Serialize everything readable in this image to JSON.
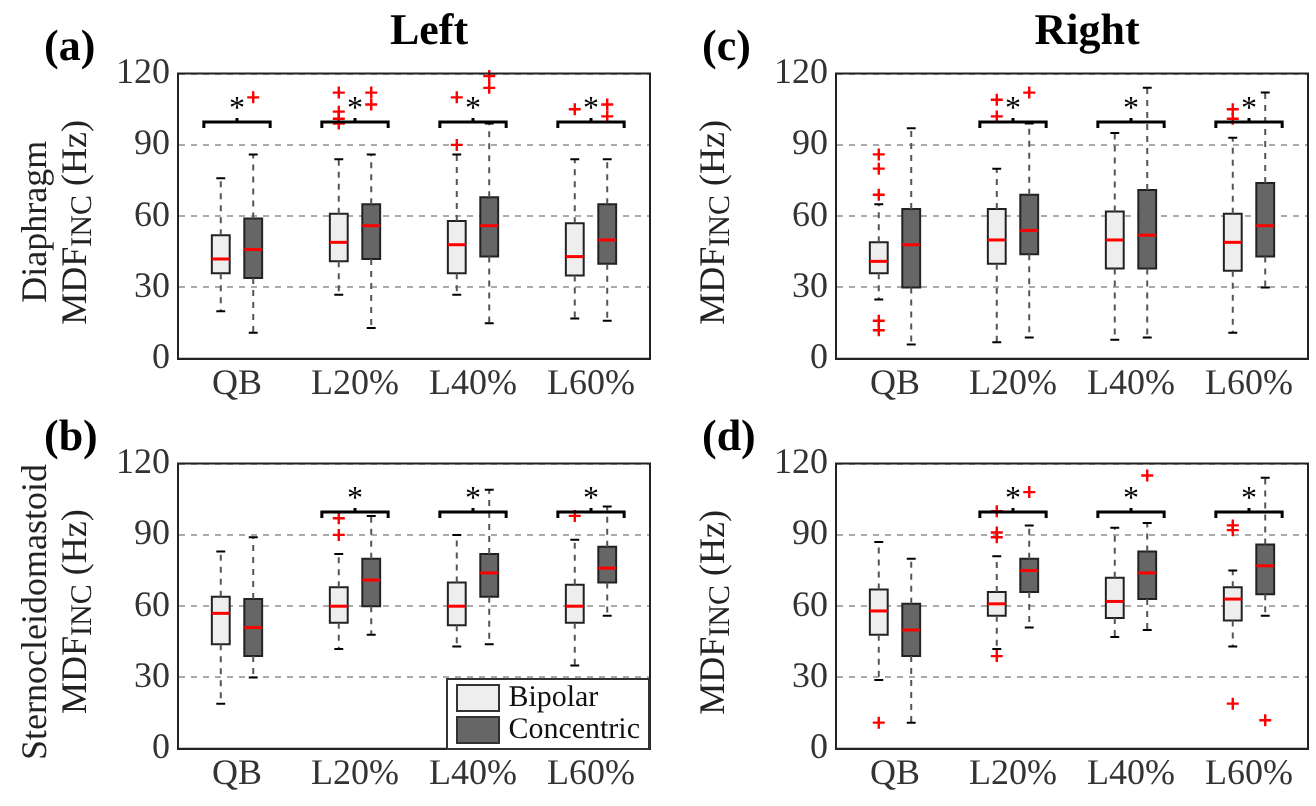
{
  "chart_data": [
    {
      "type": "box",
      "title": "Left",
      "ylabel": "Diaphragm\nMDF$_{INC}$ (Hz)",
      "categories": [
        "QB",
        "L20%",
        "L40%",
        "L60%"
      ],
      "ylim": [
        0,
        120
      ],
      "yticks": [
        0,
        30,
        60,
        90,
        120
      ],
      "grid": "y",
      "legend": false,
      "annotations": [
        "(a)",
        "*",
        "*",
        "*",
        "*"
      ],
      "series": [
        {
          "color": "#eeeeee",
          "boxes": [
            {
              "low": 20,
              "q1": 36,
              "median": 42,
              "q3": 52,
              "high": 76
            },
            {
              "low": 27,
              "q1": 41,
              "median": 49,
              "q3": 61,
              "high": 84,
              "outliers": [
                99,
                101,
                104,
                112
              ]
            },
            {
              "low": 27,
              "q1": 36,
              "median": 48,
              "q3": 58,
              "high": 86,
              "outliers": [
                90,
                110
              ]
            },
            {
              "low": 17,
              "q1": 35,
              "median": 43,
              "q3": 57,
              "high": 84,
              "outliers": [
                105
              ]
            }
          ]
        },
        {
          "color": "#666666",
          "boxes": [
            {
              "low": 11,
              "q1": 34,
              "median": 46,
              "q3": 59,
              "high": 86,
              "outliers": [
                110
              ]
            },
            {
              "low": 13,
              "q1": 42,
              "median": 56,
              "q3": 65,
              "high": 86,
              "outliers": [
                107,
                112
              ]
            },
            {
              "low": 15,
              "q1": 43,
              "median": 56,
              "q3": 68,
              "high": 99,
              "outliers": [
                114,
                119
              ]
            },
            {
              "low": 16,
              "q1": 40,
              "median": 50,
              "q3": 65,
              "high": 84,
              "outliers": [
                102,
                107
              ]
            }
          ]
        }
      ]
    },
    {
      "type": "box",
      "ylabel": "Sternocleidomastoid\nMDF$_{INC}$ (Hz)",
      "categories": [
        "QB",
        "L20%",
        "L40%",
        "L60%"
      ],
      "ylim": [
        0,
        120
      ],
      "yticks": [
        0,
        30,
        60,
        90,
        120
      ],
      "grid": "y",
      "legend": "bottom right",
      "annotations": [
        "(b)",
        "*",
        "*",
        "*"
      ],
      "series": [
        {
          "name": "Bipolar",
          "color": "#eeeeee",
          "boxes": [
            {
              "low": 19,
              "q1": 44,
              "median": 57,
              "q3": 64,
              "high": 83
            },
            {
              "low": 42,
              "q1": 53,
              "median": 60,
              "q3": 68,
              "high": 82,
              "outliers": [
                90,
                97
              ]
            },
            {
              "low": 43,
              "q1": 52,
              "median": 60,
              "q3": 70,
              "high": 90
            },
            {
              "low": 35,
              "q1": 53,
              "median": 60,
              "q3": 69,
              "high": 88,
              "outliers": [
                98
              ]
            }
          ]
        },
        {
          "name": "Concentric",
          "color": "#666666",
          "boxes": [
            {
              "low": 30,
              "q1": 39,
              "median": 51,
              "q3": 63,
              "high": 89
            },
            {
              "low": 48,
              "q1": 60,
              "median": 71,
              "q3": 80,
              "high": 98
            },
            {
              "low": 44,
              "q1": 64,
              "median": 74,
              "q3": 82,
              "high": 109
            },
            {
              "low": 56,
              "q1": 70,
              "median": 76,
              "q3": 85,
              "high": 102
            }
          ]
        }
      ]
    },
    {
      "type": "box",
      "title": "Right",
      "ylabel": "MDF$_{INC}$ (Hz)",
      "categories": [
        "QB",
        "L20%",
        "L40%",
        "L60%"
      ],
      "ylim": [
        0,
        120
      ],
      "yticks": [
        0,
        30,
        60,
        90,
        120
      ],
      "grid": "y",
      "legend": false,
      "annotations": [
        "(c)",
        "*",
        "*",
        "*"
      ],
      "series": [
        {
          "color": "#eeeeee",
          "boxes": [
            {
              "low": 25,
              "q1": 36,
              "median": 41,
              "q3": 49,
              "high": 65,
              "outliers": [
                12,
                16,
                69,
                80,
                86
              ]
            },
            {
              "low": 7,
              "q1": 40,
              "median": 50,
              "q3": 63,
              "high": 80,
              "outliers": [
                102,
                109
              ]
            },
            {
              "low": 8,
              "q1": 38,
              "median": 50,
              "q3": 62,
              "high": 95
            },
            {
              "low": 11,
              "q1": 37,
              "median": 49,
              "q3": 61,
              "high": 93,
              "outliers": [
                101,
                105
              ]
            }
          ]
        },
        {
          "color": "#666666",
          "boxes": [
            {
              "low": 6,
              "q1": 30,
              "median": 48,
              "q3": 63,
              "high": 97
            },
            {
              "low": 9,
              "q1": 44,
              "median": 54,
              "q3": 69,
              "high": 99,
              "outliers": [
                112
              ]
            },
            {
              "low": 9,
              "q1": 38,
              "median": 52,
              "q3": 71,
              "high": 114
            },
            {
              "low": 30,
              "q1": 43,
              "median": 56,
              "q3": 74,
              "high": 112
            }
          ]
        }
      ]
    },
    {
      "type": "box",
      "ylabel": "MDF$_{INC}$ (Hz)",
      "categories": [
        "QB",
        "L20%",
        "L40%",
        "L60%"
      ],
      "ylim": [
        0,
        120
      ],
      "yticks": [
        0,
        30,
        60,
        90,
        120
      ],
      "grid": "y",
      "legend": false,
      "annotations": [
        "(d)",
        "*",
        "*",
        "*"
      ],
      "series": [
        {
          "color": "#eeeeee",
          "boxes": [
            {
              "low": 29,
              "q1": 48,
              "median": 58,
              "q3": 67,
              "high": 87,
              "outliers": [
                11
              ]
            },
            {
              "low": 42,
              "q1": 56,
              "median": 61,
              "q3": 66,
              "high": 81,
              "outliers": [
                39,
                89,
                91,
                100
              ]
            },
            {
              "low": 47,
              "q1": 55,
              "median": 62,
              "q3": 72,
              "high": 93
            },
            {
              "low": 43,
              "q1": 54,
              "median": 63,
              "q3": 68,
              "high": 75,
              "outliers": [
                19,
                92,
                94
              ]
            }
          ]
        },
        {
          "color": "#666666",
          "boxes": [
            {
              "low": 11,
              "q1": 39,
              "median": 50,
              "q3": 61,
              "high": 80
            },
            {
              "low": 51,
              "q1": 66,
              "median": 75,
              "q3": 80,
              "high": 94,
              "outliers": [
                108
              ]
            },
            {
              "low": 50,
              "q1": 63,
              "median": 74,
              "q3": 83,
              "high": 95,
              "outliers": [
                115
              ]
            },
            {
              "low": 56,
              "q1": 65,
              "median": 77,
              "q3": 86,
              "high": 114,
              "outliers": [
                12
              ]
            }
          ]
        }
      ]
    }
  ]
}
